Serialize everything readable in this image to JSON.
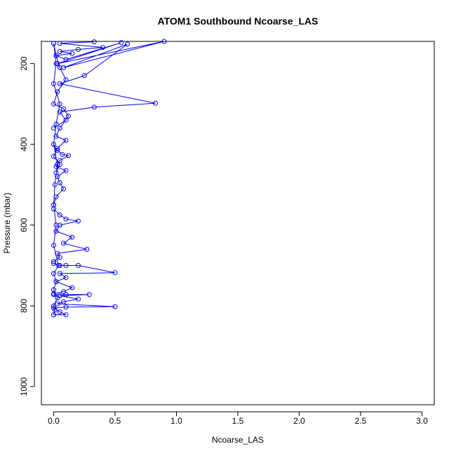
{
  "chart_data": {
    "type": "line",
    "title": "ATOM1 Southbound Ncoarse_LAS",
    "xlabel": "Ncoarse_LAS",
    "ylabel": "Pressure (mbar)",
    "xlim": [
      -0.1,
      3.1
    ],
    "ylim": [
      1045,
      145
    ],
    "y_reversed": true,
    "x_ticks": [
      "0.0",
      "0.5",
      "1.0",
      "1.5",
      "2.0",
      "2.5",
      "3.0"
    ],
    "y_ticks": [
      "200",
      "400",
      "600",
      "800",
      "1000"
    ],
    "grid": false,
    "legend": "none",
    "color": "#0000ff",
    "marker": "open-circle",
    "series": [
      {
        "x": [
          0.33,
          0.05,
          0.4,
          0.2,
          0.05,
          0.15,
          0.02,
          0.1,
          0.55,
          0.03,
          0.9,
          0.08,
          0.6,
          0.25,
          0.05,
          0.83,
          0.33,
          0.05,
          0.1,
          0.0
        ],
        "y": [
          146,
          150,
          160,
          165,
          170,
          175,
          180,
          190,
          148,
          200,
          145,
          210,
          152,
          230,
          250,
          298,
          308,
          320,
          340,
          360
        ]
      },
      {
        "x": [
          0.0,
          0.02,
          0.05,
          0.1,
          0.03,
          0.0,
          0.08,
          0.12,
          0.05,
          0.02,
          0.1,
          0.03,
          0.0,
          0.05,
          0.02
        ],
        "y": [
          150,
          180,
          210,
          240,
          270,
          300,
          312,
          330,
          360,
          380,
          390,
          410,
          430,
          450,
          470
        ]
      },
      {
        "x": [
          0.0,
          0.03,
          0.07,
          0.12,
          0.05,
          0.02,
          0.1,
          0.03,
          0.05,
          0.08,
          0.02,
          0.0
        ],
        "y": [
          400,
          415,
          425,
          428,
          440,
          455,
          465,
          480,
          495,
          510,
          530,
          550
        ]
      },
      {
        "x": [
          0.0,
          0.05,
          0.1,
          0.2,
          0.05,
          0.02,
          0.15,
          0.08,
          0.27,
          0.03,
          0.05,
          0.0
        ],
        "y": [
          560,
          575,
          585,
          590,
          600,
          615,
          630,
          645,
          660,
          670,
          680,
          690
        ]
      },
      {
        "x": [
          0.0,
          0.05,
          0.1,
          0.2,
          0.5,
          0.05,
          0.1,
          0.02,
          0.15,
          0.08,
          0.0
        ],
        "y": [
          695,
          700,
          700,
          700,
          718,
          720,
          730,
          740,
          755,
          765,
          770
        ]
      },
      {
        "x": [
          0.0,
          0.1,
          0.29,
          0.05,
          0.2,
          0.08,
          0.03,
          0.5,
          0.1,
          0.0,
          0.05,
          0.1,
          0.0
        ],
        "y": [
          772,
          772,
          772,
          775,
          783,
          790,
          795,
          802,
          803,
          805,
          815,
          822,
          822
        ]
      },
      {
        "x": [
          0.0,
          0.02,
          0.0,
          0.05,
          0.02,
          0.0,
          0.03,
          0.01,
          0.0,
          0.02,
          0.0,
          0.04,
          0.0,
          0.02,
          0.0,
          0.03,
          0.0,
          0.01,
          0.0
        ],
        "y": [
          150,
          200,
          250,
          300,
          350,
          400,
          450,
          500,
          550,
          600,
          650,
          700,
          720,
          740,
          760,
          780,
          800,
          810,
          822
        ]
      }
    ]
  }
}
